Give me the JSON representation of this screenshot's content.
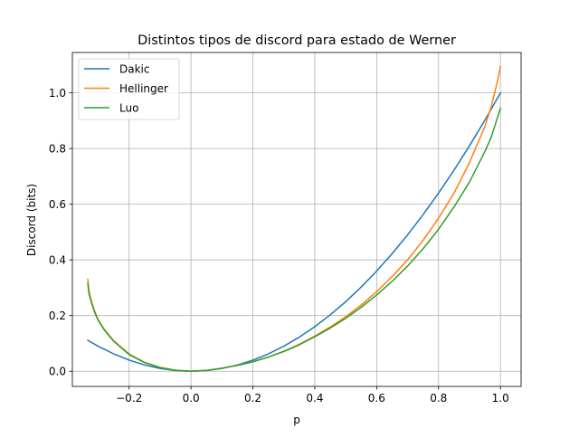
{
  "chart_data": {
    "type": "line",
    "title": "Distintos tipos de discord para estado de Werner",
    "xlabel": "p",
    "ylabel": "Discord (bits)",
    "xlim": [
      -0.3833,
      1.0667
    ],
    "ylim": [
      -0.0545,
      1.145
    ],
    "xticks": [
      -0.2,
      0.0,
      0.2,
      0.4,
      0.6,
      0.8,
      1.0
    ],
    "xtick_labels": [
      "−0.2",
      "0.0",
      "0.2",
      "0.4",
      "0.6",
      "0.8",
      "1.0"
    ],
    "yticks": [
      0.0,
      0.2,
      0.4,
      0.6,
      0.8,
      1.0
    ],
    "ytick_labels": [
      "0.0",
      "0.2",
      "0.4",
      "0.6",
      "0.8",
      "1.0"
    ],
    "grid": true,
    "legend_position": "top-left",
    "series": [
      {
        "name": "Dakic",
        "color": "#1f77b4",
        "x": [
          -0.3333,
          -0.3,
          -0.25,
          -0.2,
          -0.15,
          -0.1,
          -0.05,
          0.0,
          0.05,
          0.1,
          0.15,
          0.2,
          0.25,
          0.3,
          0.35,
          0.4,
          0.45,
          0.5,
          0.55,
          0.6,
          0.65,
          0.7,
          0.75,
          0.8,
          0.85,
          0.9,
          0.95,
          1.0
        ],
        "y": [
          0.111,
          0.09,
          0.0625,
          0.04,
          0.0225,
          0.01,
          0.0025,
          0.0,
          0.0025,
          0.01,
          0.0225,
          0.04,
          0.0625,
          0.09,
          0.1225,
          0.16,
          0.2025,
          0.25,
          0.3025,
          0.36,
          0.4225,
          0.49,
          0.5625,
          0.64,
          0.7225,
          0.81,
          0.9025,
          1.0
        ]
      },
      {
        "name": "Hellinger",
        "color": "#ff7f0e",
        "x": [
          -0.3333,
          -0.33,
          -0.32,
          -0.31,
          -0.3,
          -0.28,
          -0.25,
          -0.2,
          -0.15,
          -0.1,
          -0.05,
          0.0,
          0.05,
          0.1,
          0.15,
          0.2,
          0.25,
          0.3,
          0.35,
          0.4,
          0.45,
          0.5,
          0.55,
          0.6,
          0.65,
          0.7,
          0.75,
          0.8,
          0.85,
          0.9,
          0.95,
          0.97,
          0.99,
          1.0
        ],
        "y": [
          0.33,
          0.29,
          0.245,
          0.212,
          0.185,
          0.15,
          0.11,
          0.062,
          0.032,
          0.014,
          0.004,
          0.0,
          0.003,
          0.011,
          0.021,
          0.034,
          0.051,
          0.072,
          0.097,
          0.126,
          0.159,
          0.196,
          0.238,
          0.286,
          0.34,
          0.4,
          0.47,
          0.55,
          0.64,
          0.75,
          0.88,
          0.95,
          1.04,
          1.095
        ]
      },
      {
        "name": "Luo",
        "color": "#2ca02c",
        "x": [
          -0.3333,
          -0.33,
          -0.32,
          -0.31,
          -0.3,
          -0.28,
          -0.25,
          -0.2,
          -0.15,
          -0.1,
          -0.05,
          0.0,
          0.05,
          0.1,
          0.15,
          0.2,
          0.25,
          0.3,
          0.35,
          0.4,
          0.45,
          0.5,
          0.55,
          0.6,
          0.65,
          0.7,
          0.75,
          0.8,
          0.85,
          0.9,
          0.95,
          0.97,
          0.99,
          1.0
        ],
        "y": [
          0.315,
          0.28,
          0.24,
          0.208,
          0.183,
          0.148,
          0.108,
          0.06,
          0.031,
          0.013,
          0.003,
          0.0,
          0.003,
          0.011,
          0.021,
          0.034,
          0.051,
          0.071,
          0.095,
          0.124,
          0.155,
          0.19,
          0.23,
          0.274,
          0.323,
          0.378,
          0.44,
          0.51,
          0.59,
          0.68,
          0.79,
          0.84,
          0.91,
          0.945
        ]
      }
    ]
  }
}
